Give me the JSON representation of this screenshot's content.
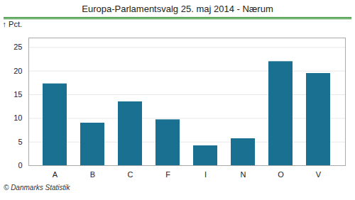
{
  "chart_data": {
    "type": "bar",
    "title": "Europa-Parlamentsvalg 25. maj 2014 - Nærum",
    "categories": [
      "A",
      "B",
      "C",
      "F",
      "I",
      "N",
      "O",
      "V"
    ],
    "values": [
      17.3,
      9.0,
      13.5,
      9.7,
      4.2,
      5.7,
      22.0,
      19.5
    ],
    "color": "#1a7090",
    "ylabel": "Pct.",
    "ylim": [
      0,
      27
    ],
    "yticks": [
      0,
      5,
      10,
      15,
      20,
      25
    ],
    "grid": true,
    "footer": "© Danmarks Statistik"
  }
}
